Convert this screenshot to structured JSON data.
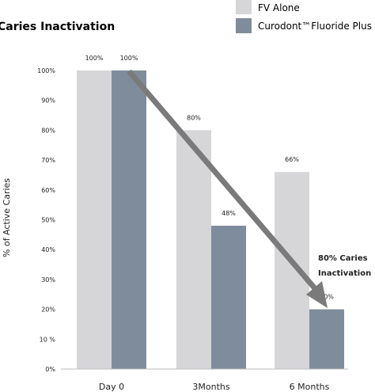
{
  "chart_data": {
    "type": "bar",
    "title": "Caries Inactivation",
    "ylabel": "% of Active Caries",
    "xlabel": "",
    "categories": [
      "Day 0",
      "3Months",
      "6 Months"
    ],
    "ylim": [
      0,
      100
    ],
    "yticks": [
      "0%",
      "10 %",
      "20%",
      "30%",
      "40%",
      "50%",
      "60%",
      "70%",
      "80%",
      "90%",
      "100%"
    ],
    "series": [
      {
        "name": "FV Alone",
        "values": [
          100,
          80,
          66
        ],
        "labels": [
          "100%",
          "80%",
          "66%"
        ]
      },
      {
        "name": "Curodont™Fluoride Plus",
        "values": [
          100,
          48,
          20
        ],
        "labels": [
          "100%",
          "48%",
          "20%"
        ]
      }
    ],
    "annotation": [
      "80% Caries",
      "Inactivation"
    ],
    "arrow": "from Day 0 top toward 6 Months Curodont bar",
    "legend_position": "top-right",
    "grid": false,
    "colors": {
      "FV Alone": "#d6d6d9",
      "Curodont™Fluoride Plus": "#7f8c9b",
      "arrow": "#7a7a7a",
      "axis": "#bdbdbd"
    }
  }
}
